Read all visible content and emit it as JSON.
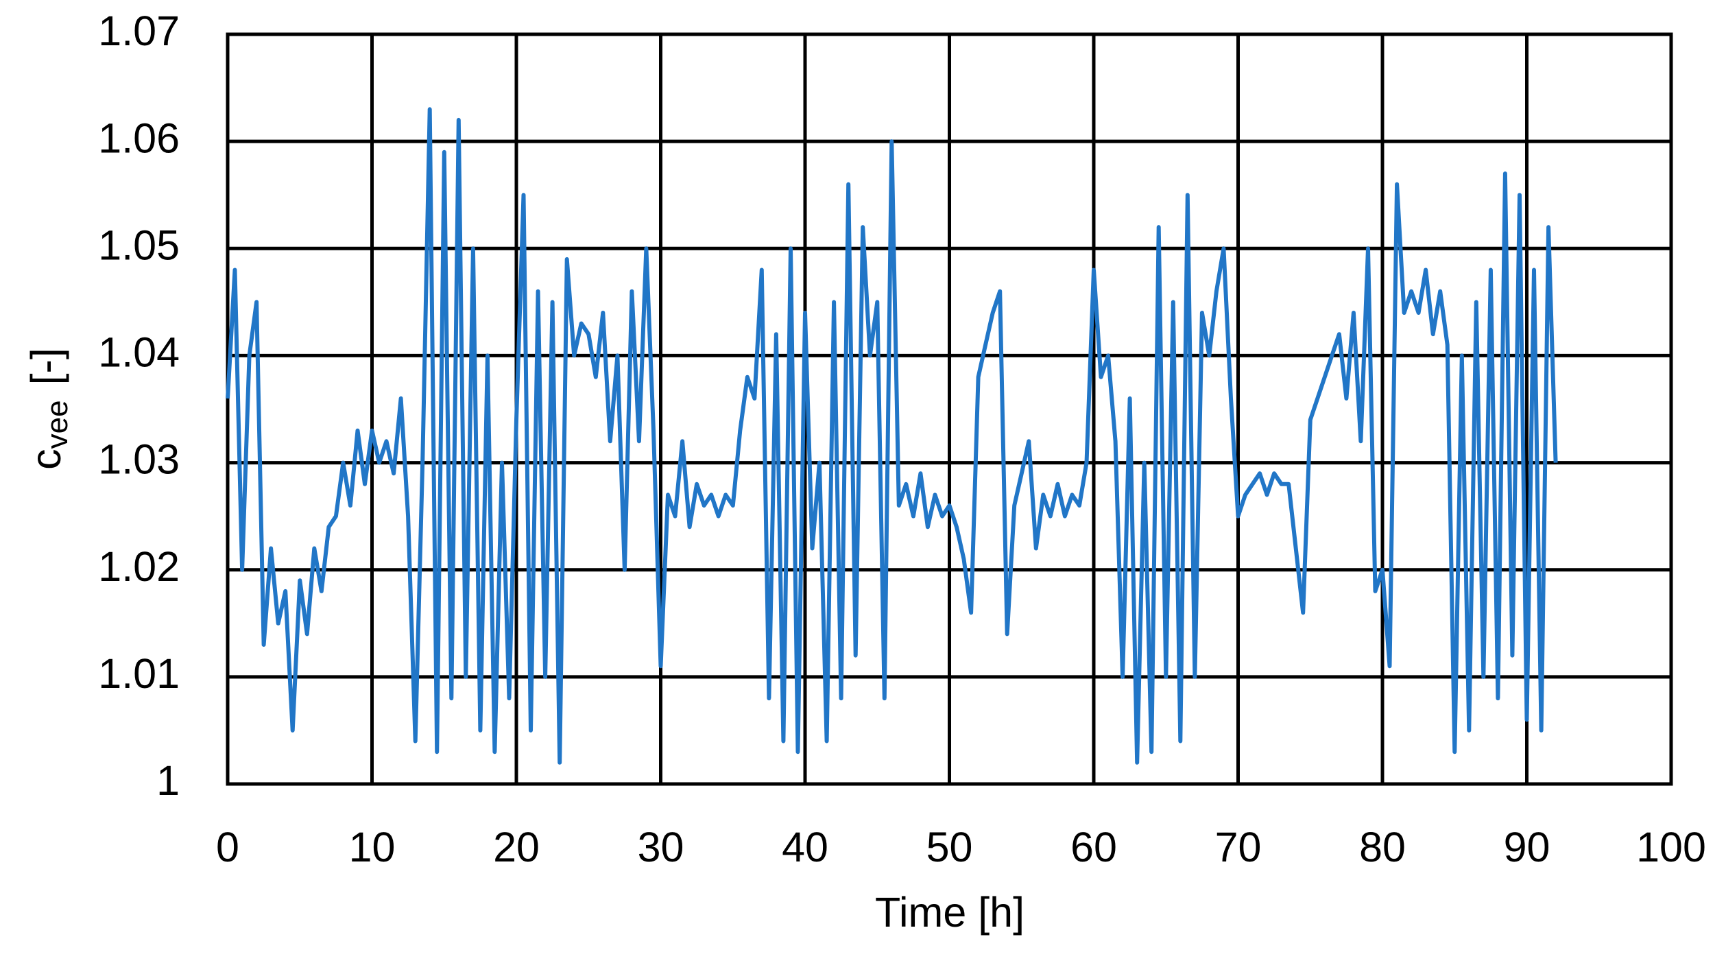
{
  "chart_data": {
    "type": "line",
    "x_label": "Time [h]",
    "y_label": "c",
    "y_label_subscript": "vee",
    "y_label_unit": "[-]",
    "xlim": [
      0,
      100
    ],
    "xticks": [
      0,
      10,
      20,
      30,
      40,
      50,
      60,
      70,
      80,
      90,
      100
    ],
    "ylim": [
      1,
      1.07
    ],
    "yticks": [
      1,
      1.01,
      1.02,
      1.03,
      1.04,
      1.05,
      1.06,
      1.07
    ],
    "grid": true,
    "x": [
      0,
      0.5,
      1,
      1.5,
      2,
      2.5,
      3,
      3.5,
      4,
      4.5,
      5,
      5.5,
      6,
      6.5,
      7,
      7.5,
      8,
      8.5,
      9,
      9.5,
      10,
      10.5,
      11,
      11.5,
      12,
      12.5,
      13,
      13.5,
      14,
      14.5,
      15,
      15.5,
      16,
      16.5,
      17,
      17.5,
      18,
      18.5,
      19,
      19.5,
      20,
      20.5,
      21,
      21.5,
      22,
      22.5,
      23,
      23.5,
      24,
      24.5,
      25,
      25.5,
      26,
      26.5,
      27,
      27.5,
      28,
      28.5,
      29,
      29.5,
      30,
      30.5,
      31,
      31.5,
      32,
      32.5,
      33,
      33.5,
      34,
      34.5,
      35,
      35.5,
      36,
      36.5,
      37,
      37.5,
      38,
      38.5,
      39,
      39.5,
      40,
      40.5,
      41,
      41.5,
      42,
      42.5,
      43,
      43.5,
      44,
      44.5,
      45,
      45.5,
      46,
      46.5,
      47,
      47.5,
      48,
      48.5,
      49,
      49.5,
      50,
      50.5,
      51,
      51.5,
      52,
      52.5,
      53,
      53.5,
      54,
      54.5,
      55,
      55.5,
      56,
      56.5,
      57,
      57.5,
      58,
      58.5,
      59,
      59.5,
      60,
      60.5,
      61,
      61.5,
      62,
      62.5,
      63,
      63.5,
      64,
      64.5,
      65,
      65.5,
      66,
      66.5,
      67,
      67.5,
      68,
      68.5,
      69,
      69.5,
      70,
      70.5,
      71,
      71.5,
      72,
      72.5,
      73,
      73.5,
      74,
      74.5,
      75,
      75.5,
      76,
      76.5,
      77,
      77.5,
      78,
      78.5,
      79,
      79.5,
      80,
      80.5,
      81,
      81.5,
      82,
      82.5,
      83,
      83.5,
      84,
      84.5,
      85,
      85.5,
      86,
      86.5,
      87,
      87.5,
      88,
      88.5,
      89,
      89.5,
      90,
      90.5,
      91,
      91.5,
      92
    ],
    "series": [
      {
        "color": "#2176c7",
        "values": [
          1.036,
          1.048,
          1.02,
          1.04,
          1.045,
          1.013,
          1.022,
          1.015,
          1.018,
          1.005,
          1.019,
          1.014,
          1.022,
          1.018,
          1.024,
          1.025,
          1.03,
          1.026,
          1.033,
          1.028,
          1.033,
          1.03,
          1.032,
          1.029,
          1.036,
          1.025,
          1.004,
          1.03,
          1.063,
          1.003,
          1.059,
          1.008,
          1.062,
          1.01,
          1.05,
          1.005,
          1.04,
          1.003,
          1.03,
          1.008,
          1.034,
          1.055,
          1.005,
          1.046,
          1.01,
          1.045,
          1.002,
          1.049,
          1.04,
          1.043,
          1.042,
          1.038,
          1.044,
          1.032,
          1.04,
          1.02,
          1.046,
          1.032,
          1.05,
          1.033,
          1.011,
          1.027,
          1.025,
          1.032,
          1.024,
          1.028,
          1.026,
          1.027,
          1.025,
          1.027,
          1.026,
          1.033,
          1.038,
          1.036,
          1.048,
          1.008,
          1.042,
          1.004,
          1.05,
          1.003,
          1.044,
          1.022,
          1.03,
          1.004,
          1.045,
          1.008,
          1.056,
          1.012,
          1.052,
          1.04,
          1.045,
          1.008,
          1.06,
          1.026,
          1.028,
          1.025,
          1.029,
          1.024,
          1.027,
          1.025,
          1.026,
          1.024,
          1.021,
          1.016,
          1.038,
          1.041,
          1.044,
          1.046,
          1.014,
          1.026,
          1.029,
          1.032,
          1.022,
          1.027,
          1.025,
          1.028,
          1.025,
          1.027,
          1.026,
          1.03,
          1.048,
          1.038,
          1.04,
          1.032,
          1.01,
          1.036,
          1.002,
          1.03,
          1.003,
          1.052,
          1.01,
          1.045,
          1.004,
          1.055,
          1.01,
          1.044,
          1.04,
          1.046,
          1.05,
          1.036,
          1.025,
          1.027,
          1.028,
          1.029,
          1.027,
          1.029,
          1.028,
          1.028,
          1.022,
          1.016,
          1.034,
          1.036,
          1.038,
          1.04,
          1.042,
          1.036,
          1.044,
          1.032,
          1.05,
          1.018,
          1.02,
          1.011,
          1.056,
          1.044,
          1.046,
          1.044,
          1.048,
          1.042,
          1.046,
          1.041,
          1.003,
          1.04,
          1.005,
          1.045,
          1.01,
          1.048,
          1.008,
          1.057,
          1.012,
          1.055,
          1.006,
          1.048,
          1.005,
          1.052,
          1.03
        ]
      }
    ]
  }
}
